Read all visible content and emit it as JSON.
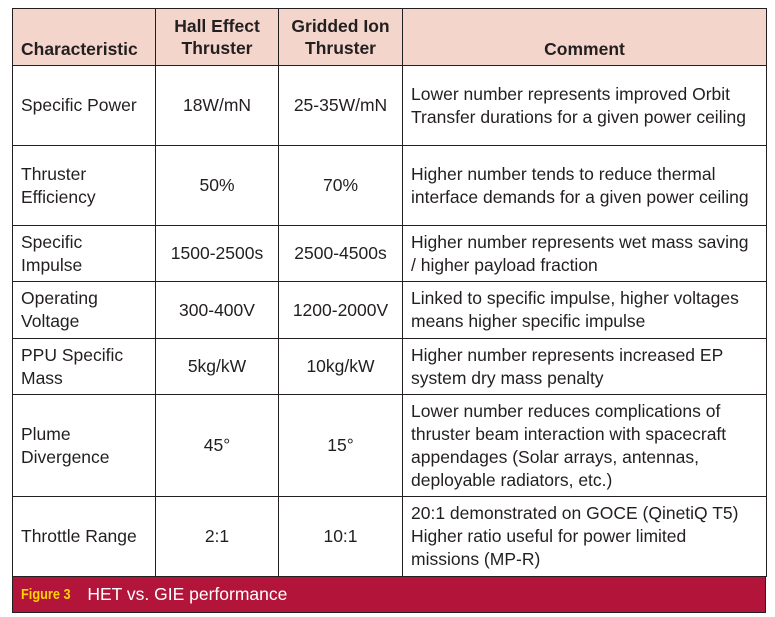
{
  "table": {
    "headers": [
      "Characteristic",
      "Hall Effect Thruster",
      "Gridded Ion Thruster",
      "Comment"
    ],
    "rows": [
      {
        "characteristic": "Specific Power",
        "het": "18W/mN",
        "git": "25-35W/mN",
        "comment": "Lower number represents improved Orbit Transfer durations for a given power ceiling"
      },
      {
        "characteristic": "Thruster Efficiency",
        "het": "50%",
        "git": "70%",
        "comment": "Higher number tends to reduce thermal interface demands for a given power ceiling"
      },
      {
        "characteristic": "Specific Impulse",
        "het": "1500-2500s",
        "git": "2500-4500s",
        "comment": "Higher number represents wet mass saving / higher payload fraction"
      },
      {
        "characteristic": "Operating Voltage",
        "het": "300-400V",
        "git": "1200-2000V",
        "comment": "Linked to specific impulse, higher voltages means higher specific impulse"
      },
      {
        "characteristic": "PPU Specific Mass",
        "het": "5kg/kW",
        "git": "10kg/kW",
        "comment": "Higher number represents increased EP system dry mass penalty"
      },
      {
        "characteristic": "Plume Divergence",
        "het": "45°",
        "git": "15°",
        "comment": "Lower number reduces complications of thruster beam interaction with spacecraft appendages (Solar arrays, antennas, deployable radiators, etc.)"
      },
      {
        "characteristic": "Throttle Range",
        "het": "2:1",
        "git": "10:1",
        "comment": "20:1 demonstrated on GOCE (QinetiQ T5) Higher ratio useful for power limited missions (MP-R)"
      }
    ]
  },
  "caption": {
    "label": "Figure 3",
    "text": "HET vs. GIE performance"
  },
  "colors": {
    "header_bg": "#f3d5cb",
    "caption_bg": "#b3143a",
    "caption_label": "#ffd200"
  }
}
